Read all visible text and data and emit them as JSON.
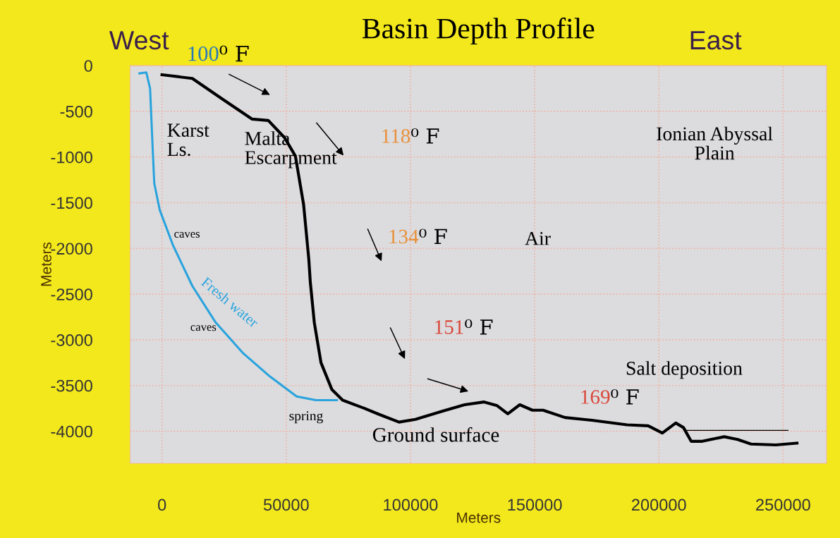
{
  "chart_data": {
    "type": "line",
    "title": "Basin Depth Profile",
    "xlabel": "Meters",
    "ylabel": "Meters",
    "xlim": [
      -12800,
      267500
    ],
    "ylim": [
      -4350,
      0
    ],
    "xticks": [
      0,
      50000,
      100000,
      150000,
      200000,
      250000
    ],
    "yticks": [
      0,
      -500,
      -1000,
      -1500,
      -2000,
      -2500,
      -3000,
      -3500,
      -4000
    ],
    "grid": true,
    "legend": false,
    "marker": "none",
    "line_style": "solid",
    "series": [
      {
        "color": "#000000",
        "x": [
          0,
          12200,
          24000,
          36300,
          42800,
          49400,
          53700,
          57000,
          59100,
          59700,
          61300,
          64000,
          68400,
          72700,
          81500,
          86900,
          95400,
          102000,
          113000,
          121800,
          129500,
          134900,
          139200,
          144000,
          149100,
          153400,
          162200,
          173000,
          187200,
          195700,
          201400,
          206800,
          209900,
          213000,
          217500,
          226300,
          231700,
          237100,
          247100,
          255600
        ],
        "values": [
          -100,
          -140,
          -360,
          -585,
          -600,
          -790,
          -990,
          -1520,
          -2120,
          -2370,
          -2810,
          -3250,
          -3545,
          -3660,
          -3750,
          -3810,
          -3900,
          -3870,
          -3780,
          -3710,
          -3680,
          -3720,
          -3810,
          -3710,
          -3770,
          -3770,
          -3850,
          -3880,
          -3930,
          -3940,
          -4020,
          -3910,
          -3960,
          -4110,
          -4110,
          -4060,
          -4090,
          -4140,
          -4150,
          -4130
        ]
      },
      {
        "color": "#29a3dc",
        "x": [
          -9100,
          -6300,
          -4800,
          -3700,
          -3100,
          -900,
          4500,
          12200,
          21600,
          32400,
          43400,
          54200,
          61900,
          70400
        ],
        "values": [
          -85,
          -75,
          -250,
          -940,
          -1290,
          -1580,
          -1970,
          -2410,
          -2810,
          -3140,
          -3400,
          -3620,
          -3660,
          -3660
        ]
      },
      {
        "color": "#000000",
        "x": [
          211000,
          252000
        ],
        "values": [
          -3990,
          -3990
        ]
      }
    ],
    "annotations": [
      "West",
      "East",
      "100⁰ F",
      "Karst\nLs.",
      "Malta\nEscarpment",
      "118⁰ F",
      "Ionian Abyssal\nPlain",
      "caves",
      "134⁰ F",
      "Air",
      "Fresh water",
      "caves",
      "151⁰ F",
      "Salt deposition",
      "169⁰ F",
      "spring",
      "Ground surface"
    ]
  }
}
